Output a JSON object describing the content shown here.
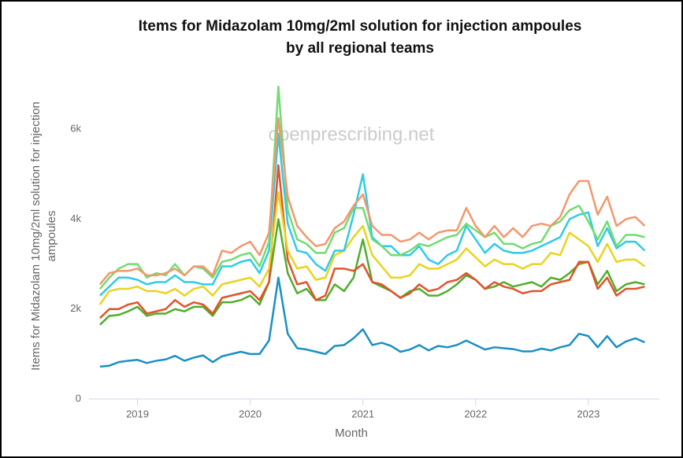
{
  "chart_data": {
    "type": "line",
    "title_lines": [
      "Items for Midazolam 10mg/2ml solution for injection ampoules",
      "by all regional teams"
    ],
    "ylabel_lines": [
      "Items for Midazolam 10mg/2ml solution for injection",
      "ampoules"
    ],
    "xlabel": "Month",
    "watermark": "openprescribing.net",
    "xlim": [
      2018.57,
      2023.63
    ],
    "xticks": [
      2019,
      2020,
      2021,
      2022,
      2023
    ],
    "ylim": [
      0,
      7300
    ],
    "yticks": [
      0,
      {
        "value": 2000,
        "label": "2k"
      },
      {
        "value": 4000,
        "label": "4k"
      },
      {
        "value": 6000,
        "label": "6k"
      }
    ],
    "grid": false,
    "x": [
      2018.667,
      2018.75,
      2018.833,
      2018.917,
      2019,
      2019.083,
      2019.167,
      2019.25,
      2019.333,
      2019.417,
      2019.5,
      2019.583,
      2019.667,
      2019.75,
      2019.833,
      2019.917,
      2020,
      2020.083,
      2020.167,
      2020.25,
      2020.333,
      2020.417,
      2020.5,
      2020.583,
      2020.667,
      2020.75,
      2020.833,
      2020.917,
      2021,
      2021.083,
      2021.167,
      2021.25,
      2021.333,
      2021.417,
      2021.5,
      2021.583,
      2021.667,
      2021.75,
      2021.833,
      2021.917,
      2022,
      2022.083,
      2022.167,
      2022.25,
      2022.333,
      2022.417,
      2022.5,
      2022.583,
      2022.667,
      2022.75,
      2022.833,
      2022.917,
      2023,
      2023.083,
      2023.167,
      2023.25,
      2023.333,
      2023.417,
      2023.5
    ],
    "series": [
      {
        "color": "#1b8fc4",
        "values": [
          720,
          740,
          820,
          850,
          870,
          800,
          850,
          880,
          960,
          850,
          920,
          970,
          820,
          950,
          1000,
          1050,
          1000,
          1000,
          1300,
          2700,
          1450,
          1130,
          1100,
          1050,
          1000,
          1180,
          1200,
          1350,
          1550,
          1200,
          1250,
          1180,
          1050,
          1100,
          1200,
          1080,
          1180,
          1150,
          1200,
          1300,
          1200,
          1100,
          1150,
          1130,
          1110,
          1060,
          1060,
          1120,
          1080,
          1150,
          1200,
          1450,
          1400,
          1150,
          1400,
          1150,
          1280,
          1350,
          1260
        ]
      },
      {
        "color": "#4fae2b",
        "values": [
          1650,
          1850,
          1870,
          1950,
          2050,
          1850,
          1900,
          1900,
          2000,
          1950,
          2050,
          2050,
          1850,
          2150,
          2150,
          2200,
          2300,
          2100,
          2600,
          4000,
          2800,
          2350,
          2450,
          2200,
          2200,
          2550,
          2400,
          2700,
          3550,
          2600,
          2500,
          2400,
          2250,
          2400,
          2450,
          2300,
          2300,
          2400,
          2550,
          2750,
          2650,
          2450,
          2500,
          2600,
          2500,
          2550,
          2600,
          2500,
          2700,
          2650,
          2800,
          3000,
          3050,
          2550,
          2850,
          2400,
          2550,
          2600,
          2550
        ]
      },
      {
        "color": "#e3522a",
        "values": [
          1800,
          2000,
          2000,
          2100,
          2150,
          1900,
          1950,
          2000,
          2200,
          2050,
          2150,
          2100,
          1900,
          2250,
          2300,
          2350,
          2400,
          2200,
          2600,
          5200,
          3100,
          2550,
          2600,
          2200,
          2300,
          2900,
          2900,
          2850,
          3000,
          2600,
          2550,
          2400,
          2250,
          2350,
          2550,
          2400,
          2450,
          2600,
          2650,
          2800,
          2650,
          2450,
          2600,
          2500,
          2450,
          2350,
          2400,
          2400,
          2550,
          2600,
          2650,
          3050,
          3050,
          2450,
          2700,
          2300,
          2450,
          2450,
          2500
        ]
      },
      {
        "color": "#e9d41c",
        "values": [
          2100,
          2400,
          2450,
          2450,
          2500,
          2400,
          2400,
          2350,
          2450,
          2300,
          2450,
          2500,
          2300,
          2550,
          2600,
          2650,
          2700,
          2500,
          2900,
          4600,
          3300,
          2900,
          2950,
          2650,
          2700,
          3200,
          3300,
          3600,
          3850,
          3200,
          2950,
          2700,
          2700,
          2750,
          3000,
          2900,
          2900,
          3000,
          3100,
          3350,
          3150,
          2950,
          3100,
          3000,
          3000,
          2900,
          3000,
          3000,
          3250,
          3200,
          3700,
          3550,
          3400,
          3050,
          3450,
          3050,
          3100,
          3100,
          2950
        ]
      },
      {
        "color": "#2fcbe6",
        "values": [
          2300,
          2500,
          2700,
          2700,
          2650,
          2550,
          2600,
          2600,
          2750,
          2600,
          2600,
          2550,
          2550,
          2950,
          2950,
          3050,
          3100,
          2800,
          3300,
          5900,
          3900,
          3300,
          3250,
          3000,
          2850,
          3300,
          3300,
          4100,
          5000,
          3600,
          3400,
          3400,
          3200,
          3200,
          3400,
          3100,
          3000,
          3200,
          3300,
          3850,
          3550,
          3250,
          3450,
          3300,
          3250,
          3250,
          3300,
          3400,
          3500,
          3600,
          4000,
          4100,
          4150,
          3400,
          3800,
          3350,
          3500,
          3500,
          3300
        ]
      },
      {
        "color": "#72db72",
        "values": [
          2450,
          2700,
          2900,
          3000,
          3000,
          2700,
          2800,
          2750,
          3000,
          2750,
          2950,
          2900,
          2700,
          3050,
          3100,
          3200,
          3250,
          2950,
          3500,
          6950,
          4200,
          3550,
          3450,
          3250,
          3250,
          3700,
          3800,
          4250,
          4250,
          3550,
          3400,
          3200,
          3200,
          3300,
          3450,
          3400,
          3500,
          3600,
          3650,
          3900,
          3750,
          3600,
          3700,
          3450,
          3450,
          3350,
          3450,
          3500,
          3850,
          3950,
          4200,
          4300,
          3950,
          3550,
          3950,
          3400,
          3650,
          3650,
          3600
        ]
      },
      {
        "color": "#f4976c",
        "values": [
          2550,
          2800,
          2850,
          2850,
          2900,
          2750,
          2750,
          2800,
          2900,
          2750,
          2950,
          2950,
          2750,
          3300,
          3250,
          3400,
          3500,
          3200,
          3700,
          6250,
          4500,
          3850,
          3600,
          3400,
          3450,
          3800,
          3950,
          4300,
          4550,
          3850,
          3650,
          3650,
          3500,
          3550,
          3700,
          3550,
          3700,
          3750,
          3750,
          4250,
          3850,
          3600,
          3850,
          3600,
          3800,
          3600,
          3850,
          3900,
          3850,
          4050,
          4550,
          4850,
          4850,
          4100,
          4500,
          3850,
          4000,
          4050,
          3850
        ]
      }
    ]
  }
}
